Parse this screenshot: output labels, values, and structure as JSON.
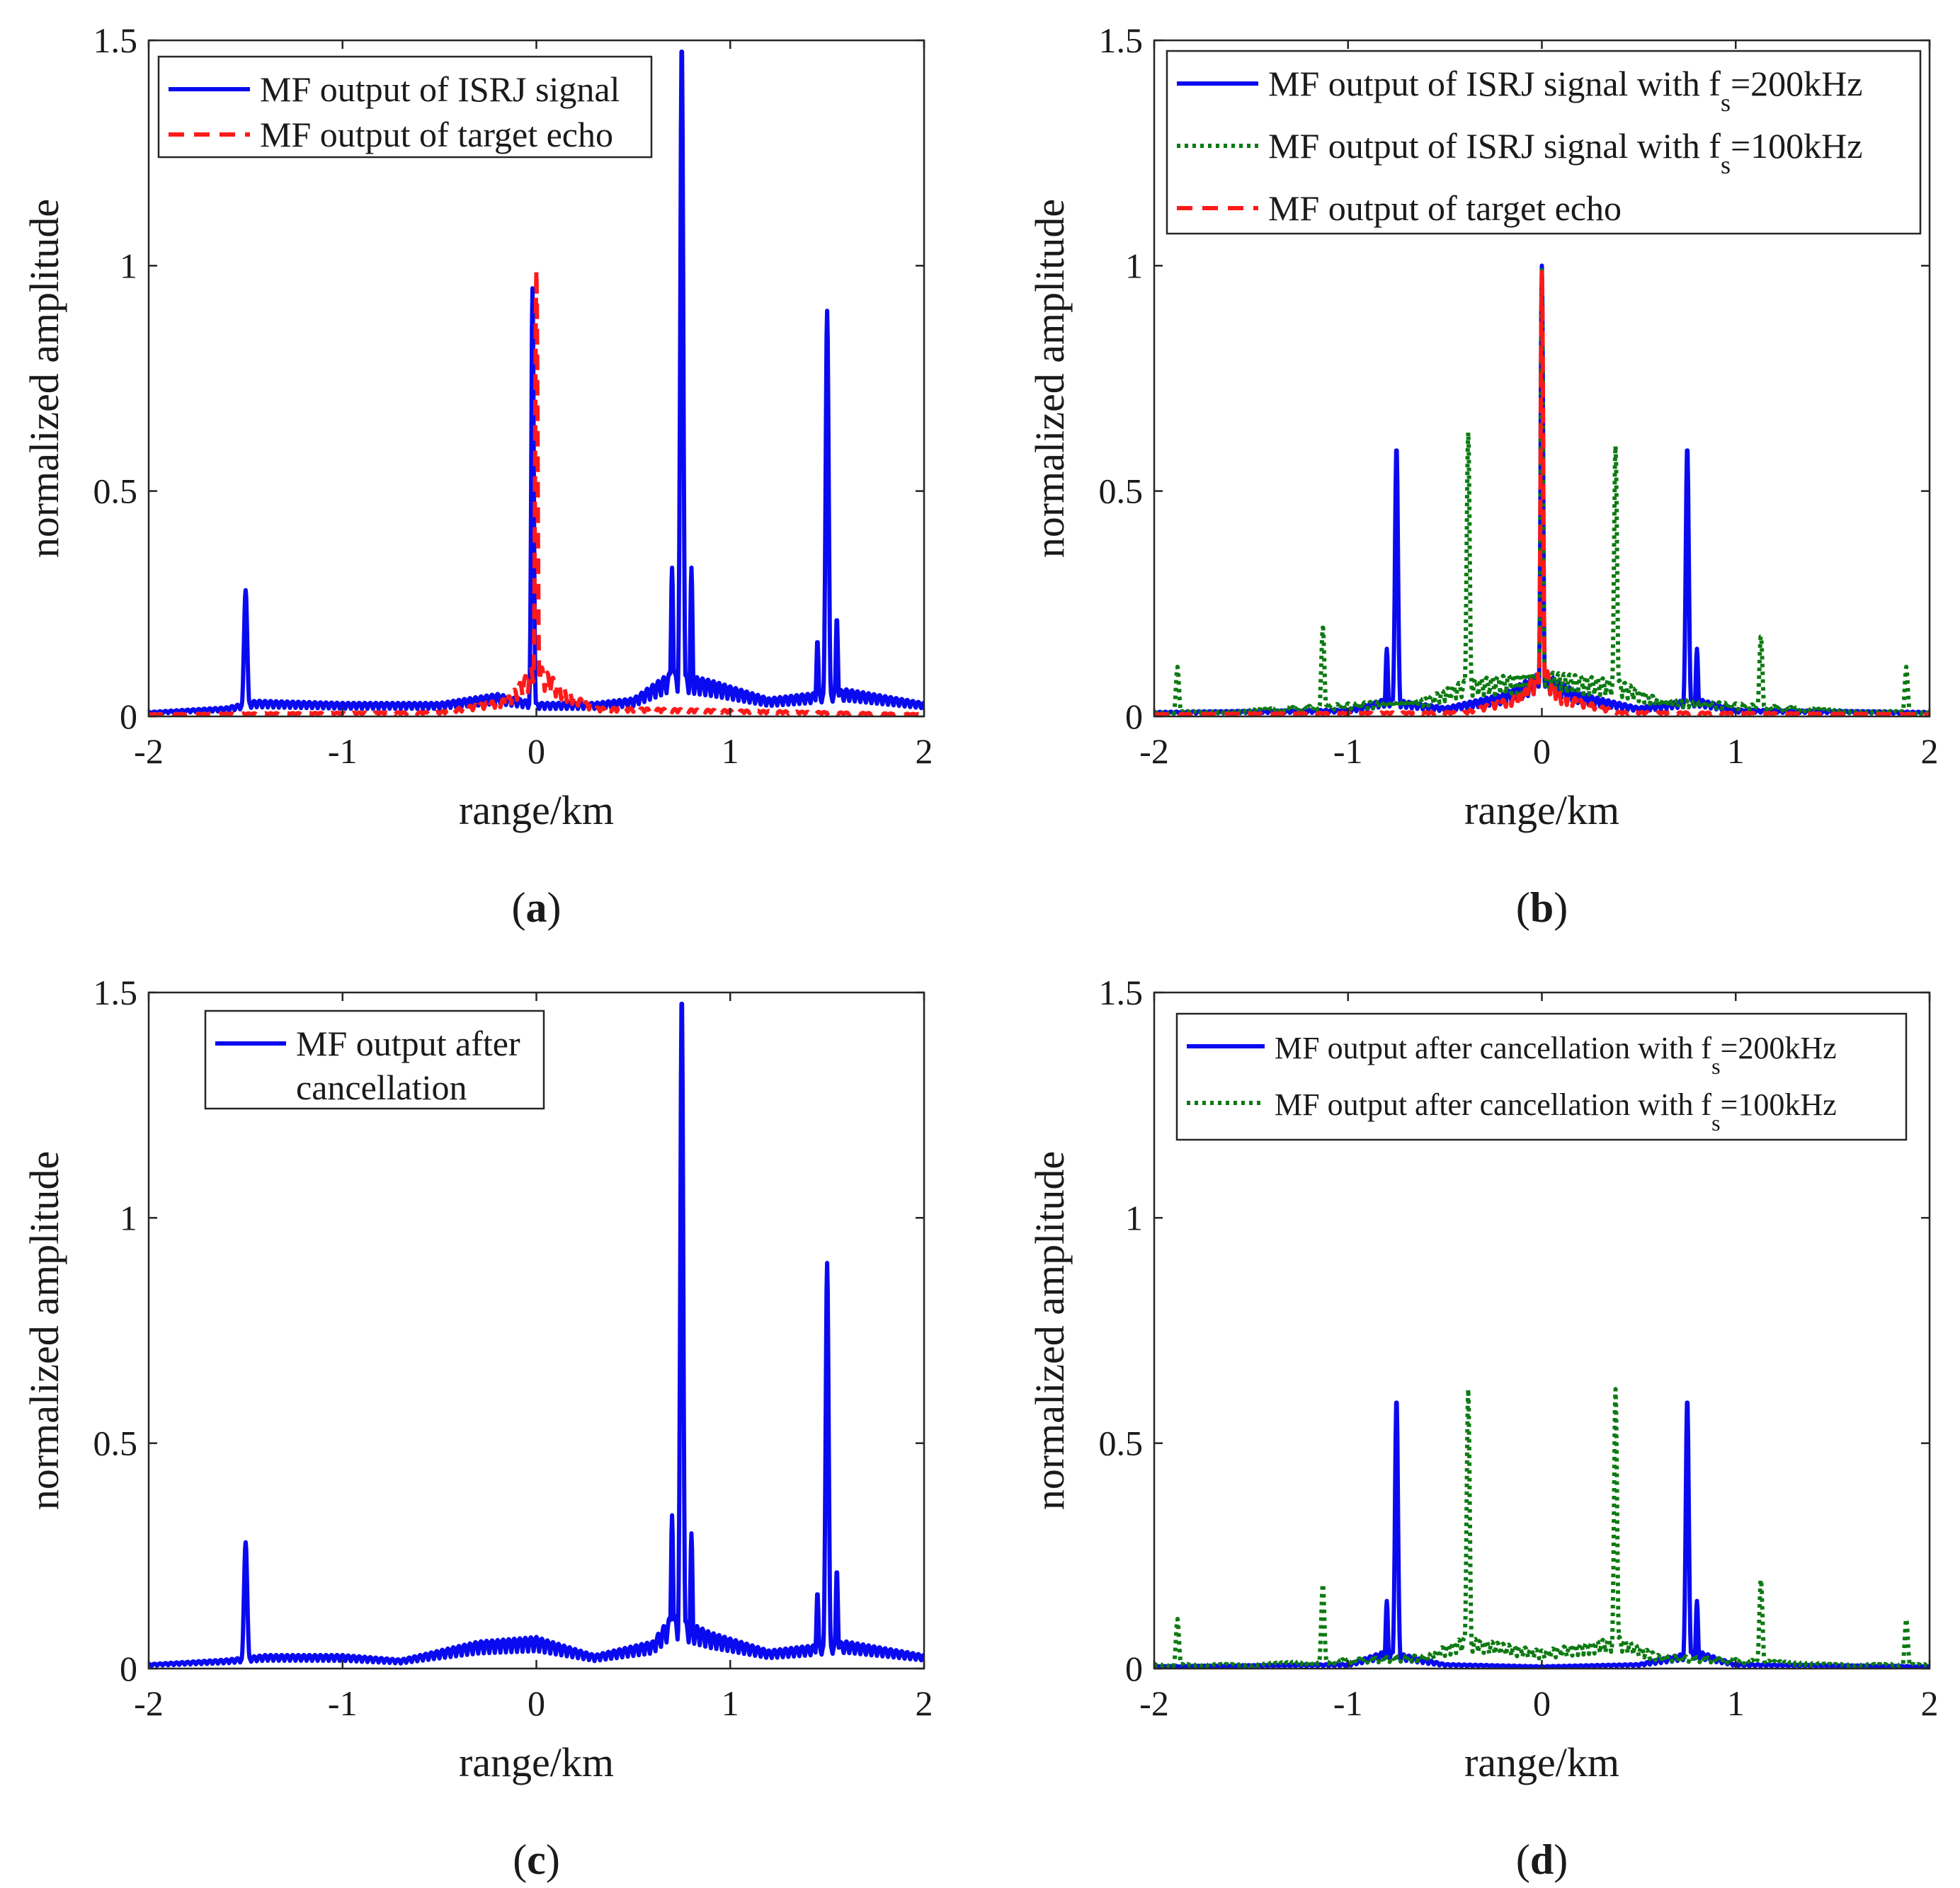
{
  "colors": {
    "blue": "#0a0af0",
    "red": "#ff1a1a",
    "green": "#0e7a12",
    "axis": "#262626"
  },
  "chart_data": [
    {
      "type": "line",
      "panel": "a",
      "caption": {
        "open": "(",
        "letter": "a",
        "close": ")"
      },
      "xlabel": "range/km",
      "ylabel": "normalized amplitude",
      "xlim": [
        -2,
        2
      ],
      "ylim": [
        0,
        1.5
      ],
      "xticks": [
        "-2",
        "-1",
        "0",
        "1",
        "2"
      ],
      "yticks": [
        "0",
        "0.5",
        "1",
        "1.5"
      ],
      "grid": false,
      "legend_position": "top-right",
      "series": [
        {
          "name": "MF output of ISRJ signal",
          "color": "#0a0af0",
          "style": "solid",
          "baseline": [
            [
              -2,
              0.01
            ],
            [
              -1.6,
              0.02
            ],
            [
              -1.45,
              0.035
            ],
            [
              -1,
              0.03
            ],
            [
              -0.5,
              0.03
            ],
            [
              -0.2,
              0.05
            ],
            [
              0,
              0.03
            ],
            [
              0.3,
              0.03
            ],
            [
              0.5,
              0.04
            ],
            [
              0.7,
              0.1
            ],
            [
              0.9,
              0.08
            ],
            [
              1.2,
              0.04
            ],
            [
              1.4,
              0.05
            ],
            [
              1.6,
              0.06
            ],
            [
              2,
              0.03
            ]
          ],
          "peaks": [
            {
              "x": -1.5,
              "h": 0.28,
              "w": 0.012
            },
            {
              "x": -0.02,
              "h": 0.95,
              "w": 0.009
            },
            {
              "x": 0.75,
              "h": 1.5,
              "w": 0.011
            },
            {
              "x": 0.7,
              "h": 0.33,
              "w": 0.008
            },
            {
              "x": 0.8,
              "h": 0.33,
              "w": 0.008
            },
            {
              "x": 1.5,
              "h": 0.9,
              "w": 0.011
            },
            {
              "x": 1.45,
              "h": 0.17,
              "w": 0.008
            },
            {
              "x": 1.55,
              "h": 0.22,
              "w": 0.008
            }
          ]
        },
        {
          "name": "MF output of target echo",
          "color": "#ff1a1a",
          "style": "dashed",
          "baseline": [
            [
              -2,
              0.005
            ],
            [
              -0.5,
              0.01
            ],
            [
              -0.15,
              0.04
            ],
            [
              0,
              0.12
            ],
            [
              0.15,
              0.06
            ],
            [
              0.3,
              0.02
            ],
            [
              2,
              0.005
            ]
          ],
          "peaks": [
            {
              "x": 0,
              "h": 0.99,
              "w": 0.009
            }
          ]
        }
      ]
    },
    {
      "type": "line",
      "panel": "b",
      "caption": {
        "open": "(",
        "letter": "b",
        "close": ")"
      },
      "xlabel": "range/km",
      "ylabel": "normalized amplitude",
      "xlim": [
        -2,
        2
      ],
      "ylim": [
        0,
        1.5
      ],
      "xticks": [
        "-2",
        "-1",
        "0",
        "1",
        "2"
      ],
      "yticks": [
        "0",
        "0.5",
        "1",
        "1.5"
      ],
      "grid": false,
      "legend_position": "top-right",
      "series": [
        {
          "name": "MF output of ISRJ signal with f",
          "sub": "s",
          "suffix": "=200kHz",
          "color": "#0a0af0",
          "style": "solid",
          "baseline": [
            [
              -2,
              0.01
            ],
            [
              -1,
              0.015
            ],
            [
              -0.8,
              0.04
            ],
            [
              -0.5,
              0.02
            ],
            [
              -0.2,
              0.05
            ],
            [
              0,
              0.1
            ],
            [
              0.2,
              0.05
            ],
            [
              0.5,
              0.02
            ],
            [
              0.8,
              0.04
            ],
            [
              1,
              0.015
            ],
            [
              2,
              0.01
            ]
          ],
          "peaks": [
            {
              "x": -0.75,
              "h": 0.6,
              "w": 0.011
            },
            {
              "x": 0,
              "h": 1.0,
              "w": 0.009
            },
            {
              "x": 0.75,
              "h": 0.6,
              "w": 0.011
            },
            {
              "x": -0.8,
              "h": 0.15,
              "w": 0.008
            },
            {
              "x": 0.8,
              "h": 0.15,
              "w": 0.008
            }
          ]
        },
        {
          "name": "MF output of ISRJ signal with f",
          "sub": "s",
          "suffix": "=100kHz",
          "color": "#0e7a12",
          "style": "dotted",
          "baseline": [
            [
              -2,
              0.01
            ],
            [
              -1.5,
              0.015
            ],
            [
              -0.6,
              0.04
            ],
            [
              -0.4,
              0.08
            ],
            [
              0,
              0.1
            ],
            [
              0.4,
              0.08
            ],
            [
              0.6,
              0.04
            ],
            [
              1.5,
              0.015
            ],
            [
              2,
              0.01
            ]
          ],
          "peaks": [
            {
              "x": -1.88,
              "h": 0.11,
              "w": 0.011
            },
            {
              "x": -1.13,
              "h": 0.2,
              "w": 0.011
            },
            {
              "x": -0.38,
              "h": 0.63,
              "w": 0.011
            },
            {
              "x": 0,
              "h": 0.99,
              "w": 0.009
            },
            {
              "x": 0.38,
              "h": 0.6,
              "w": 0.011
            },
            {
              "x": 1.13,
              "h": 0.18,
              "w": 0.011
            },
            {
              "x": 1.88,
              "h": 0.11,
              "w": 0.011
            }
          ]
        },
        {
          "name": "MF output of target echo",
          "color": "#ff1a1a",
          "style": "dashed",
          "baseline": [
            [
              -2,
              0.005
            ],
            [
              -0.4,
              0.01
            ],
            [
              -0.1,
              0.05
            ],
            [
              0,
              0.12
            ],
            [
              0.1,
              0.05
            ],
            [
              0.4,
              0.01
            ],
            [
              2,
              0.005
            ]
          ],
          "peaks": [
            {
              "x": 0,
              "h": 0.99,
              "w": 0.009
            }
          ]
        }
      ]
    },
    {
      "type": "line",
      "panel": "c",
      "caption": {
        "open": "(",
        "letter": "c",
        "close": ")"
      },
      "xlabel": "range/km",
      "ylabel": "normalized amplitude",
      "xlim": [
        -2,
        2
      ],
      "ylim": [
        0,
        1.5
      ],
      "xticks": [
        "-2",
        "-1",
        "0",
        "1",
        "2"
      ],
      "yticks": [
        "0",
        "0.5",
        "1",
        "1.5"
      ],
      "grid": false,
      "legend_position": "top-right",
      "series": [
        {
          "name": "MF output after",
          "name2": "cancellation",
          "color": "#0a0af0",
          "style": "solid",
          "baseline": [
            [
              -2,
              0.01
            ],
            [
              -1.6,
              0.02
            ],
            [
              -1.4,
              0.03
            ],
            [
              -1,
              0.03
            ],
            [
              -0.7,
              0.02
            ],
            [
              -0.3,
              0.06
            ],
            [
              0,
              0.07
            ],
            [
              0.3,
              0.03
            ],
            [
              0.6,
              0.06
            ],
            [
              0.7,
              0.12
            ],
            [
              0.9,
              0.08
            ],
            [
              1.2,
              0.04
            ],
            [
              1.4,
              0.05
            ],
            [
              1.6,
              0.06
            ],
            [
              2,
              0.03
            ]
          ],
          "peaks": [
            {
              "x": -1.5,
              "h": 0.28,
              "w": 0.012
            },
            {
              "x": 0.75,
              "h": 1.5,
              "w": 0.011
            },
            {
              "x": 0.7,
              "h": 0.34,
              "w": 0.008
            },
            {
              "x": 0.8,
              "h": 0.3,
              "w": 0.008
            },
            {
              "x": 1.5,
              "h": 0.9,
              "w": 0.011
            },
            {
              "x": 1.45,
              "h": 0.17,
              "w": 0.008
            },
            {
              "x": 1.55,
              "h": 0.22,
              "w": 0.008
            }
          ]
        }
      ]
    },
    {
      "type": "line",
      "panel": "d",
      "caption": {
        "open": "(",
        "letter": "d",
        "close": ")"
      },
      "xlabel": "range/km",
      "ylabel": "normalized amplitude",
      "xlim": [
        -2,
        2
      ],
      "ylim": [
        0,
        1.5
      ],
      "xticks": [
        "-2",
        "-1",
        "0",
        "1",
        "2"
      ],
      "yticks": [
        "0",
        "0.5",
        "1",
        "1.5"
      ],
      "grid": false,
      "legend_position": "top-right",
      "series": [
        {
          "name": "MF output after cancellation with f",
          "sub": "s",
          "suffix": "=200kHz",
          "color": "#0a0af0",
          "style": "solid",
          "baseline": [
            [
              -2,
              0.005
            ],
            [
              -1,
              0.01
            ],
            [
              -0.8,
              0.04
            ],
            [
              -0.5,
              0.01
            ],
            [
              0,
              0.005
            ],
            [
              0.5,
              0.01
            ],
            [
              0.8,
              0.04
            ],
            [
              1,
              0.01
            ],
            [
              2,
              0.005
            ]
          ],
          "peaks": [
            {
              "x": -0.75,
              "h": 0.6,
              "w": 0.011
            },
            {
              "x": 0.75,
              "h": 0.6,
              "w": 0.011
            },
            {
              "x": -0.8,
              "h": 0.15,
              "w": 0.008
            },
            {
              "x": 0.8,
              "h": 0.15,
              "w": 0.008
            }
          ]
        },
        {
          "name": "MF output after cancellation with f",
          "sub": "s",
          "suffix": "=100kHz",
          "color": "#0e7a12",
          "style": "dotted",
          "baseline": [
            [
              -2,
              0.01
            ],
            [
              -1.5,
              0.01
            ],
            [
              -0.6,
              0.03
            ],
            [
              -0.4,
              0.07
            ],
            [
              0,
              0.04
            ],
            [
              0.4,
              0.07
            ],
            [
              0.6,
              0.03
            ],
            [
              1.5,
              0.01
            ],
            [
              2,
              0.01
            ]
          ],
          "peaks": [
            {
              "x": -1.88,
              "h": 0.11,
              "w": 0.011
            },
            {
              "x": -1.13,
              "h": 0.19,
              "w": 0.011
            },
            {
              "x": -0.38,
              "h": 0.62,
              "w": 0.011
            },
            {
              "x": 0.38,
              "h": 0.62,
              "w": 0.011
            },
            {
              "x": 1.13,
              "h": 0.2,
              "w": 0.011
            },
            {
              "x": 1.88,
              "h": 0.11,
              "w": 0.011
            }
          ]
        }
      ]
    }
  ]
}
